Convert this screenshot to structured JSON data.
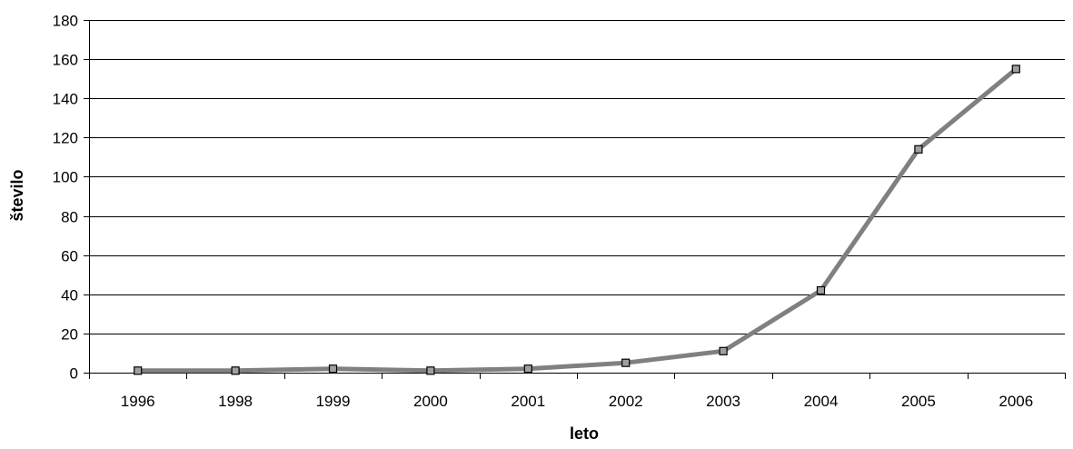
{
  "chart_data": {
    "type": "line",
    "title": "",
    "xlabel": "leto",
    "ylabel": "število",
    "categories": [
      "1996",
      "1998",
      "1999",
      "2000",
      "2001",
      "2002",
      "2003",
      "2004",
      "2005",
      "2006"
    ],
    "series": [
      {
        "values": [
          1,
          1,
          2,
          1,
          2,
          5,
          11,
          42,
          114,
          155
        ]
      }
    ],
    "ylim": [
      0,
      180
    ],
    "yticks": [
      0,
      20,
      40,
      60,
      80,
      100,
      120,
      140,
      160,
      180
    ],
    "grid": "horizontal",
    "legend": "none",
    "colors": {
      "line": "#808080",
      "marker_fill": "#a0a0a0",
      "marker_stroke": "#000000",
      "grid": "#000000"
    }
  }
}
